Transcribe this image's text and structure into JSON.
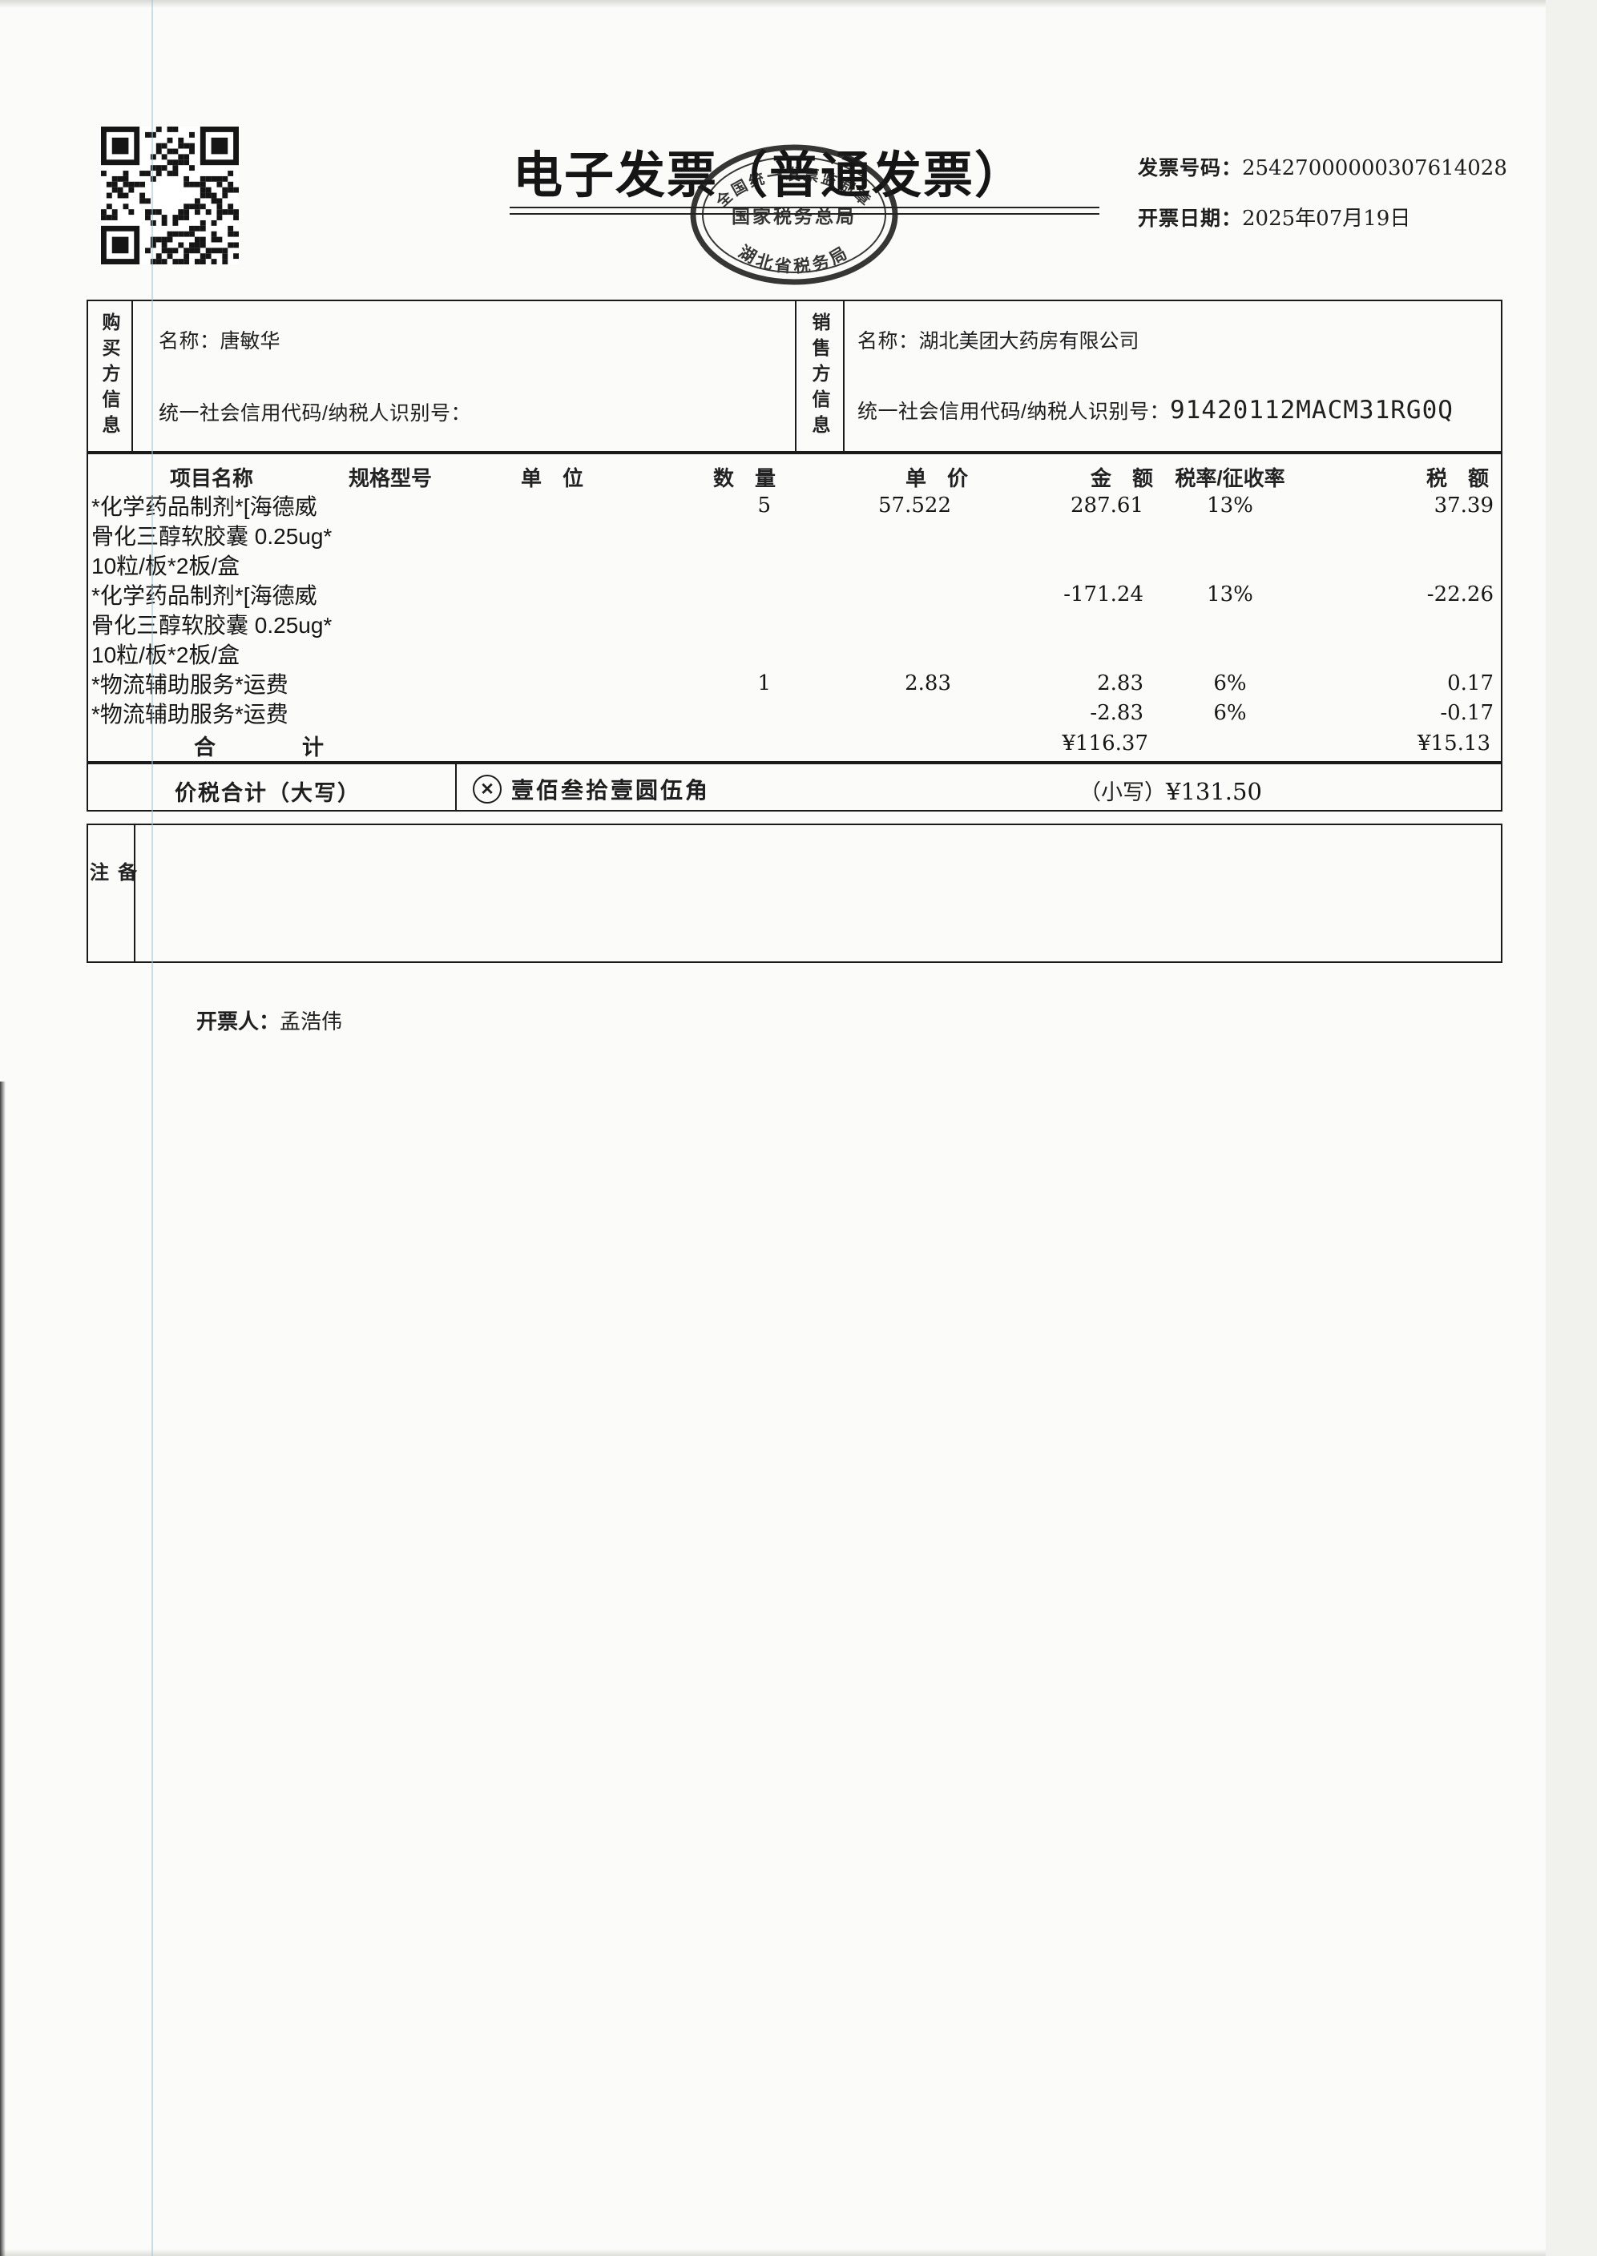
{
  "invoice": {
    "title": "电子发票（普通发票）",
    "meta": {
      "number_label": "发票号码：",
      "number": "25427000000307614028",
      "date_label": "开票日期：",
      "date": "2025年07月19日"
    },
    "seal": {
      "arc_top": "全国统一发票监制章",
      "middle": "国家税务总局",
      "bottom": "湖北省税务局"
    },
    "buyer": {
      "side_label": "购买方信息",
      "name_label": "名称：",
      "name": "唐敏华",
      "tax_id_label": "统一社会信用代码/纳税人识别号：",
      "tax_id": ""
    },
    "seller": {
      "side_label": "销售方信息",
      "name_label": "名称：",
      "name": "湖北美团大药房有限公司",
      "tax_id_label": "统一社会信用代码/纳税人识别号：",
      "tax_id": "91420112MACM31RG0Q"
    },
    "table": {
      "headers": {
        "name": "项目名称",
        "spec": "规格型号",
        "unit": "单　位",
        "qty": "数　量",
        "price": "单　价",
        "amount": "金　额",
        "rate": "税率/征收率",
        "tax": "税　额"
      },
      "rows": [
        {
          "name": "*化学药品制剂*[海德威",
          "qty": "5",
          "price": "57.522",
          "amount": "287.61",
          "rate": "13%",
          "tax": "37.39"
        },
        {
          "name": "骨化三醇软胶囊 0.25ug*",
          "qty": "",
          "price": "",
          "amount": "",
          "rate": "",
          "tax": ""
        },
        {
          "name": "10粒/板*2板/盒",
          "qty": "",
          "price": "",
          "amount": "",
          "rate": "",
          "tax": ""
        },
        {
          "name": "*化学药品制剂*[海德威",
          "qty": "",
          "price": "",
          "amount": "-171.24",
          "rate": "13%",
          "tax": "-22.26"
        },
        {
          "name": "骨化三醇软胶囊 0.25ug*",
          "qty": "",
          "price": "",
          "amount": "",
          "rate": "",
          "tax": ""
        },
        {
          "name": "10粒/板*2板/盒",
          "qty": "",
          "price": "",
          "amount": "",
          "rate": "",
          "tax": ""
        },
        {
          "name": "*物流辅助服务*运费",
          "qty": "1",
          "price": "2.83",
          "amount": "2.83",
          "rate": "6%",
          "tax": "0.17"
        },
        {
          "name": "*物流辅助服务*运费",
          "qty": "",
          "price": "",
          "amount": "-2.83",
          "rate": "6%",
          "tax": "-0.17"
        }
      ],
      "total_label": "合计",
      "total_amount": "¥116.37",
      "total_tax": "¥15.13"
    },
    "grand_total": {
      "label": "价税合计（大写）",
      "words": "壹佰叁拾壹圆伍角",
      "small_label": "（小写）",
      "small_value": "¥131.50"
    },
    "remarks_label": "备注",
    "issuer_label": "开票人：",
    "issuer": "孟浩伟"
  },
  "icons": {
    "qr_code": "qr-code",
    "cross_circle": "✕"
  },
  "colors": {
    "ink": "#1f1f1f",
    "border": "#1a1a1a",
    "scan_line_blue": "#9fc4dd"
  }
}
